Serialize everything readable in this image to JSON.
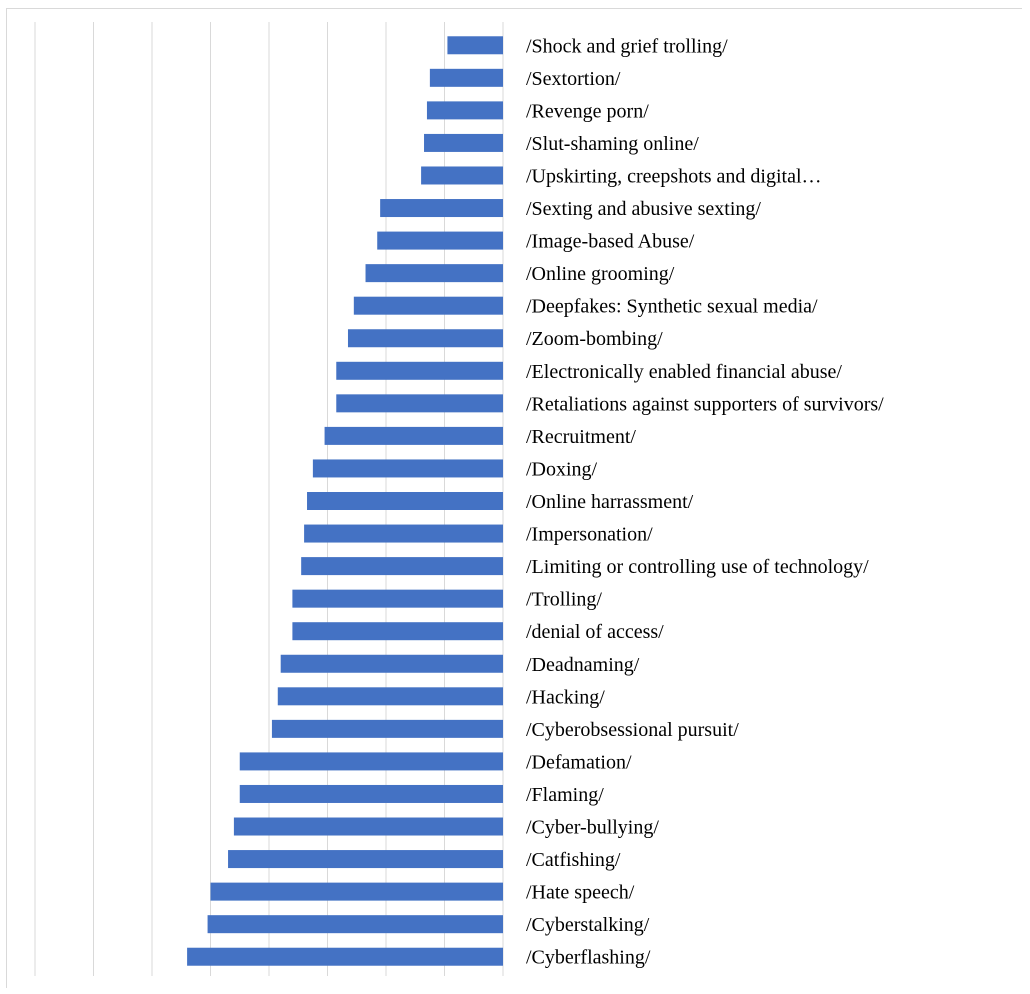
{
  "chart_data": {
    "type": "bar",
    "orientation": "horizontal",
    "bars_extend": "leftward",
    "grid": true,
    "legend": "none",
    "xlim": [
      0,
      8
    ],
    "categories": [
      "/Shock and grief trolling/",
      "/Sextortion/",
      "/Revenge porn/",
      "/Slut-shaming online/",
      "/Upskirting, creepshots and digital…",
      "/Sexting and abusive sexting/",
      "/Image-based Abuse/",
      "/Online grooming/",
      "/Deepfakes: Synthetic sexual media/",
      "/Zoom-bombing/",
      "/Electronically enabled financial abuse/",
      "/Retaliations against supporters of survivors/",
      "/Recruitment/",
      "/Doxing/",
      "/Online harrassment/",
      "/Impersonation/",
      "/Limiting or controlling use of technology/",
      "/Trolling/",
      "/denial of access/",
      "/Deadnaming/",
      "/Hacking/",
      "/Cyberobsessional pursuit/",
      "/Defamation/",
      "/Flaming/",
      "/Cyber-bullying/",
      "/Catfishing/",
      "/Hate speech/",
      "/Cyberstalking/",
      "/Cyberflashing/"
    ],
    "values": [
      0.95,
      1.25,
      1.3,
      1.35,
      1.4,
      2.1,
      2.15,
      2.35,
      2.55,
      2.65,
      2.85,
      2.85,
      3.05,
      3.25,
      3.35,
      3.4,
      3.45,
      3.6,
      3.6,
      3.8,
      3.85,
      3.95,
      4.5,
      4.5,
      4.6,
      4.7,
      5.0,
      5.05,
      5.4
    ],
    "bar_color": "#4472c4",
    "grid_color": "#d9d9d9"
  }
}
